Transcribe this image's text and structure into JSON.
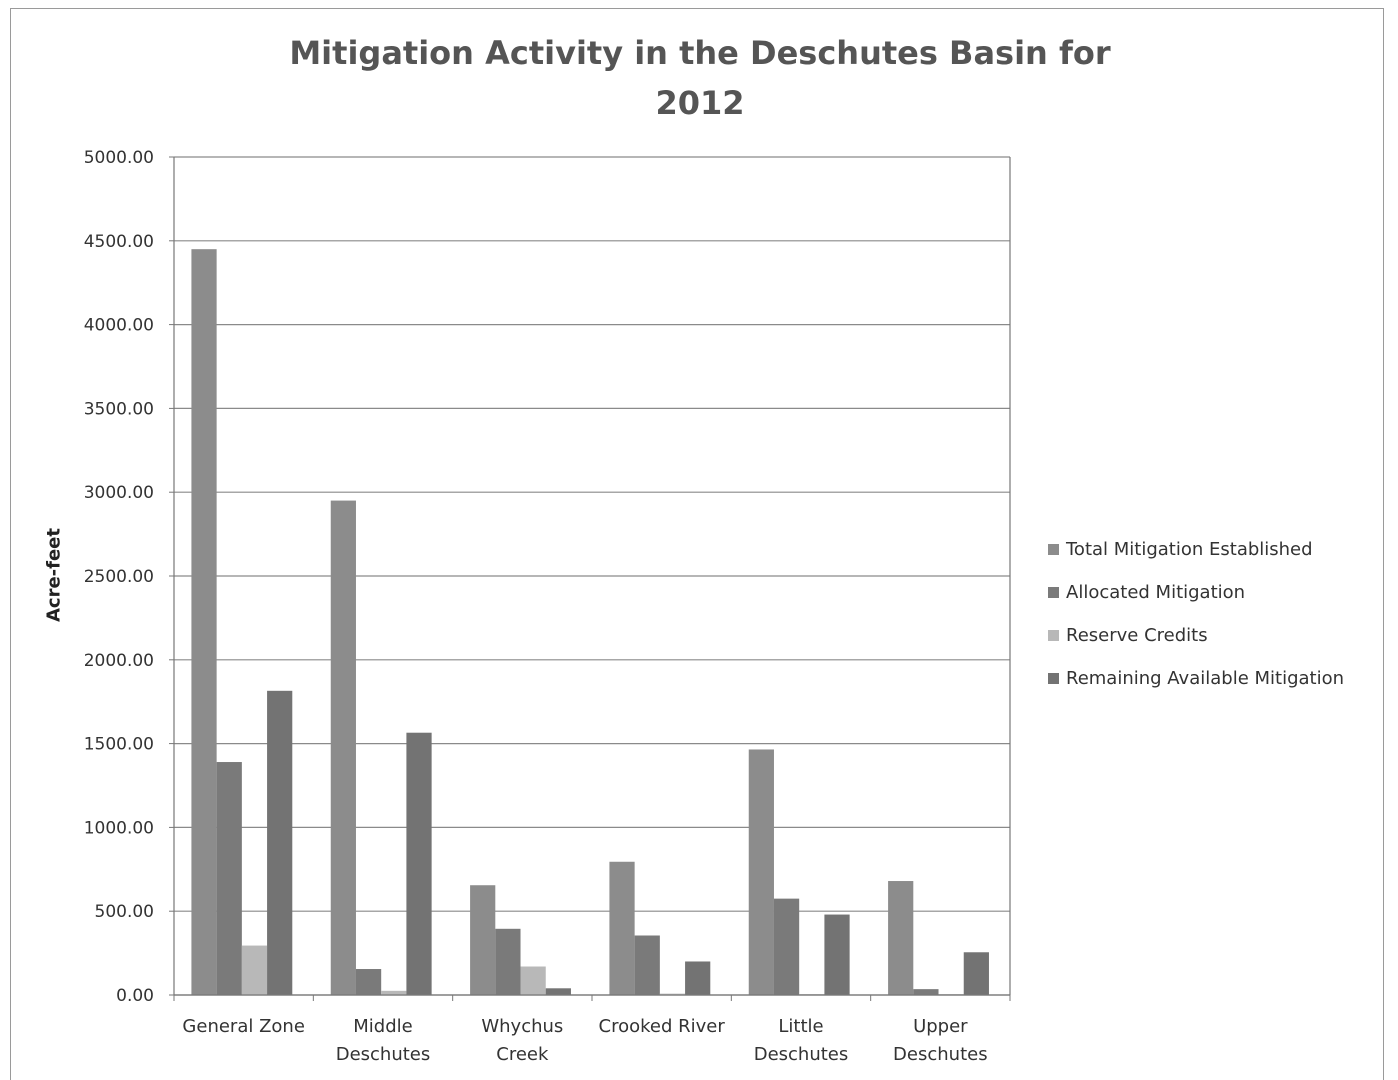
{
  "chart_data": {
    "type": "bar",
    "title": [
      "Mitigation Activity in the Deschutes Basin for",
      "2012"
    ],
    "ylabel": "Acre-feet",
    "xlabel": "",
    "ylim": [
      0,
      5000
    ],
    "yticks": [
      "0.00",
      "500.00",
      "1000.00",
      "1500.00",
      "2000.00",
      "2500.00",
      "3000.00",
      "3500.00",
      "4000.00",
      "4500.00",
      "5000.00"
    ],
    "grid": true,
    "legend_position": "right",
    "categories": [
      [
        "General Zone"
      ],
      [
        "Middle",
        "Deschutes"
      ],
      [
        "Whychus",
        "Creek"
      ],
      [
        "Crooked River"
      ],
      [
        "Little",
        "Deschutes"
      ],
      [
        "Upper",
        "Deschutes"
      ]
    ],
    "series": [
      {
        "name": "Total Mitigation Established",
        "color": "#8c8c8c",
        "values": [
          4450,
          2950,
          655,
          795,
          1465,
          680
        ]
      },
      {
        "name": "Allocated Mitigation",
        "color": "#7a7a7a",
        "values": [
          1390,
          155,
          395,
          355,
          575,
          35
        ]
      },
      {
        "name": "Reserve Credits",
        "color": "#b8b8b8",
        "values": [
          295,
          25,
          170,
          8,
          5,
          5
        ]
      },
      {
        "name": "Remaining Available Mitigation",
        "color": "#737373",
        "values": [
          1815,
          1565,
          40,
          200,
          480,
          255
        ]
      }
    ]
  }
}
